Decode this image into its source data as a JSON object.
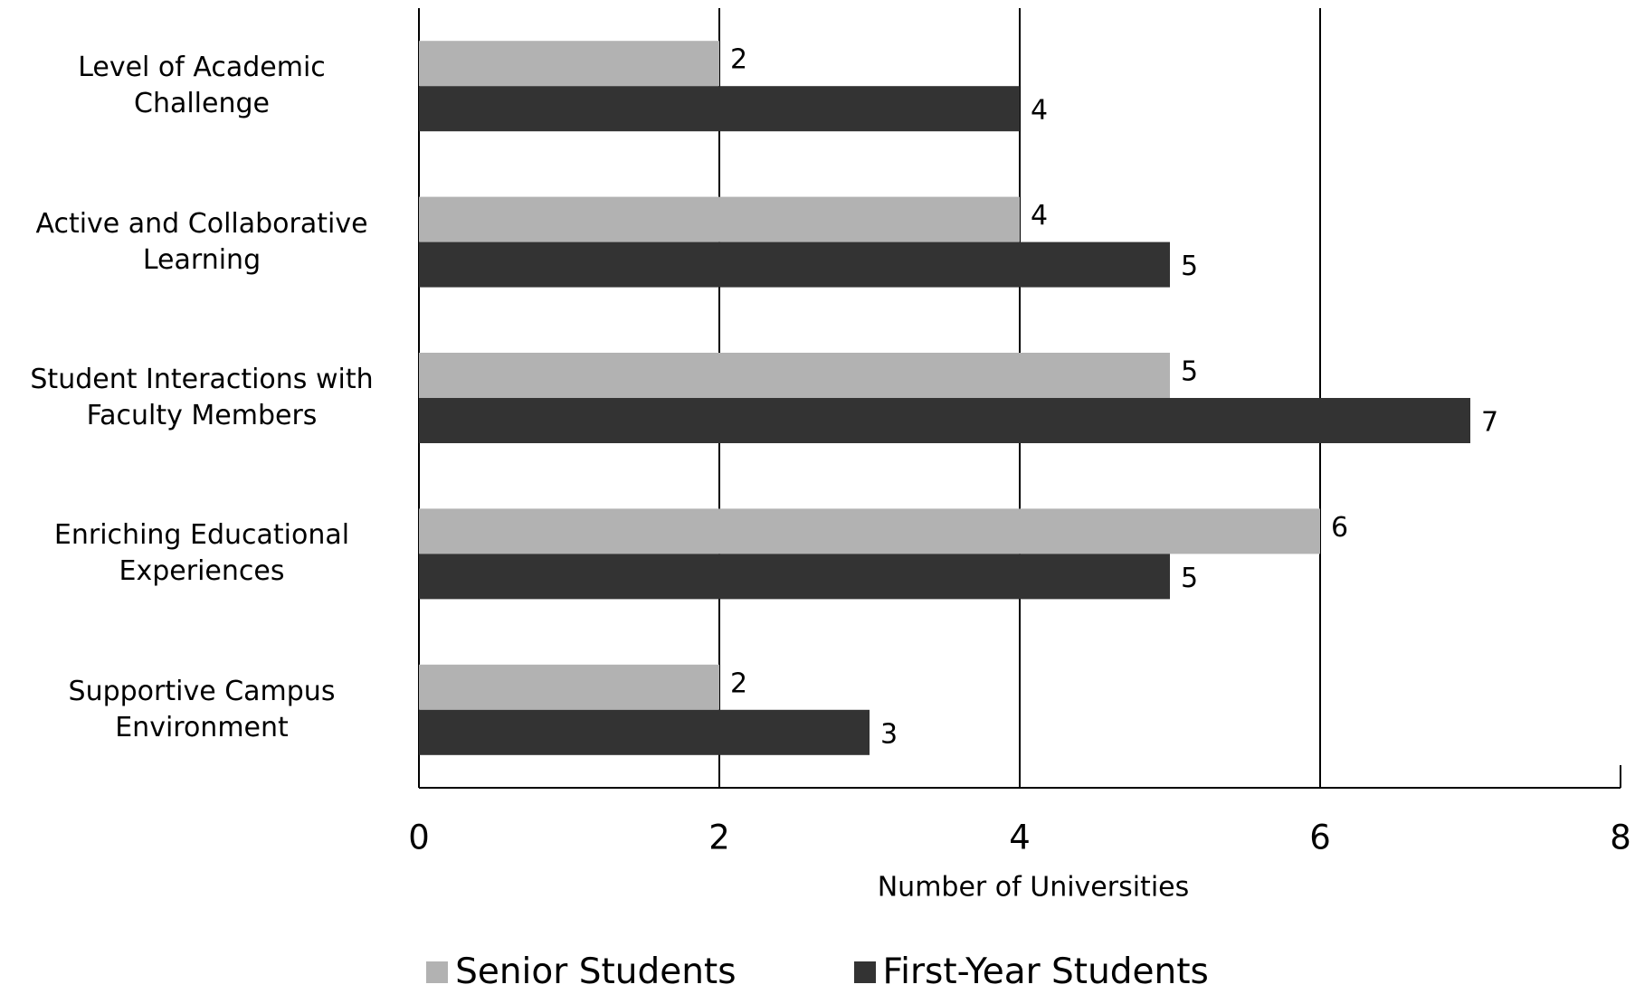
{
  "chart_data": {
    "type": "hbar",
    "categories": [
      "Level of Academic Challenge",
      "Active and Collaborative Learning",
      "Student Interactions with Faculty Members",
      "Enriching Educational Experiences",
      "Supportive Campus Environment"
    ],
    "series": [
      {
        "name": "Senior Students",
        "color": "#b2b2b2",
        "values": [
          2,
          4,
          5,
          6,
          2
        ]
      },
      {
        "name": "First-Year Students",
        "color": "#333333",
        "values": [
          4,
          5,
          7,
          5,
          3
        ]
      }
    ],
    "x_label": "Number of Universities",
    "xlim": [
      0,
      8
    ],
    "xticks": [
      0,
      2,
      4,
      6,
      8
    ],
    "grid": true,
    "legend": "bottom"
  }
}
